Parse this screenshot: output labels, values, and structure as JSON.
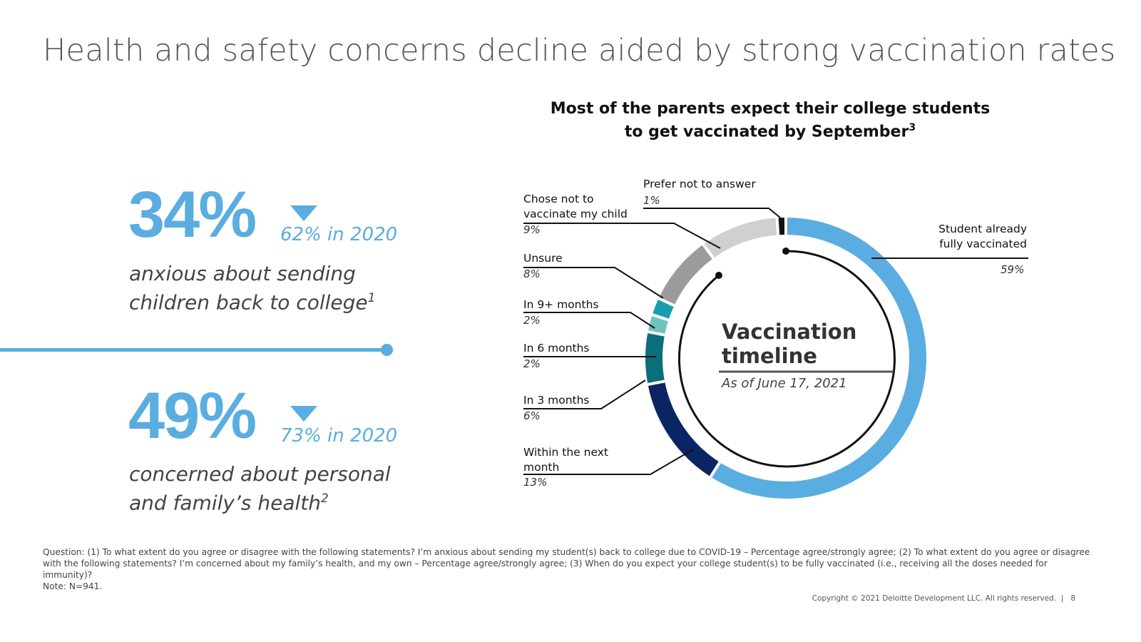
{
  "title": "Health and safety concerns decline aided by strong vaccination rates",
  "stats": [
    {
      "value": "34%",
      "compare": "62% in 2020",
      "desc_line1": "anxious about sending",
      "desc_line2": "children back to college",
      "footnote": "1"
    },
    {
      "value": "49%",
      "compare": "73% in 2020",
      "desc_line1": "concerned about personal",
      "desc_line2": "and family’s health",
      "footnote": "2"
    }
  ],
  "colors": {
    "accent": "#5aade0",
    "dark_navy": "#0b2463",
    "teal_dark": "#0a6f7a",
    "teal_mid": "#1a9db0",
    "teal_light": "#6fc3bd",
    "grey_mid": "#9b9b9b",
    "grey_light": "#d0d0d0",
    "black": "#111111"
  },
  "chart_data": {
    "type": "pie",
    "title_line1": "Most of the parents expect their college students",
    "title_line2": "to get vaccinated by September",
    "title_footnote": "3",
    "center_title_line1": "Vaccination",
    "center_title_line2": "timeline",
    "center_subtitle": "As of June 17, 2021",
    "slices": [
      {
        "label": "Student already fully vaccinated",
        "label_line1": "Student already",
        "label_line2": "fully vaccinated",
        "value": 59,
        "value_label": "59%",
        "color": "#5aade0"
      },
      {
        "label": "Within the next month",
        "label_line1": "Within the next",
        "label_line2": "month",
        "value": 13,
        "value_label": "13%",
        "color": "#0b2463"
      },
      {
        "label": "In 3 months",
        "value": 6,
        "value_label": "6%",
        "color": "#0a6f7a"
      },
      {
        "label": "In 6 months",
        "value": 2,
        "value_label": "2%",
        "color": "#6fc3bd"
      },
      {
        "label": "In 9+ months",
        "value": 2,
        "value_label": "2%",
        "color": "#1a9db0"
      },
      {
        "label": "Unsure",
        "value": 8,
        "value_label": "8%",
        "color": "#9b9b9b"
      },
      {
        "label": "Chose not to vaccinate my child",
        "label_line1": "Chose not to",
        "label_line2": "vaccinate my child",
        "value": 9,
        "value_label": "9%",
        "color": "#d0d0d0"
      },
      {
        "label": "Prefer not to answer",
        "value": 1,
        "value_label": "1%",
        "color": "#111111"
      }
    ]
  },
  "notes": {
    "question": "Question: (1) To what extent do you agree or disagree with the following statements? I’m anxious about sending my student(s) back to college due to COVID-19 – Percentage agree/strongly agree; (2) To what extent do you agree or disagree with the following statements? I’m concerned about my family’s health, and my own – Percentage agree/strongly agree; (3) When do you expect your college student(s) to be fully vaccinated (i.e., receiving all the doses needed for immunity)?",
    "note": "Note: N=941."
  },
  "copyright": "Copyright © 2021 Deloitte Development LLC. All rights reserved.",
  "page_number": "8"
}
